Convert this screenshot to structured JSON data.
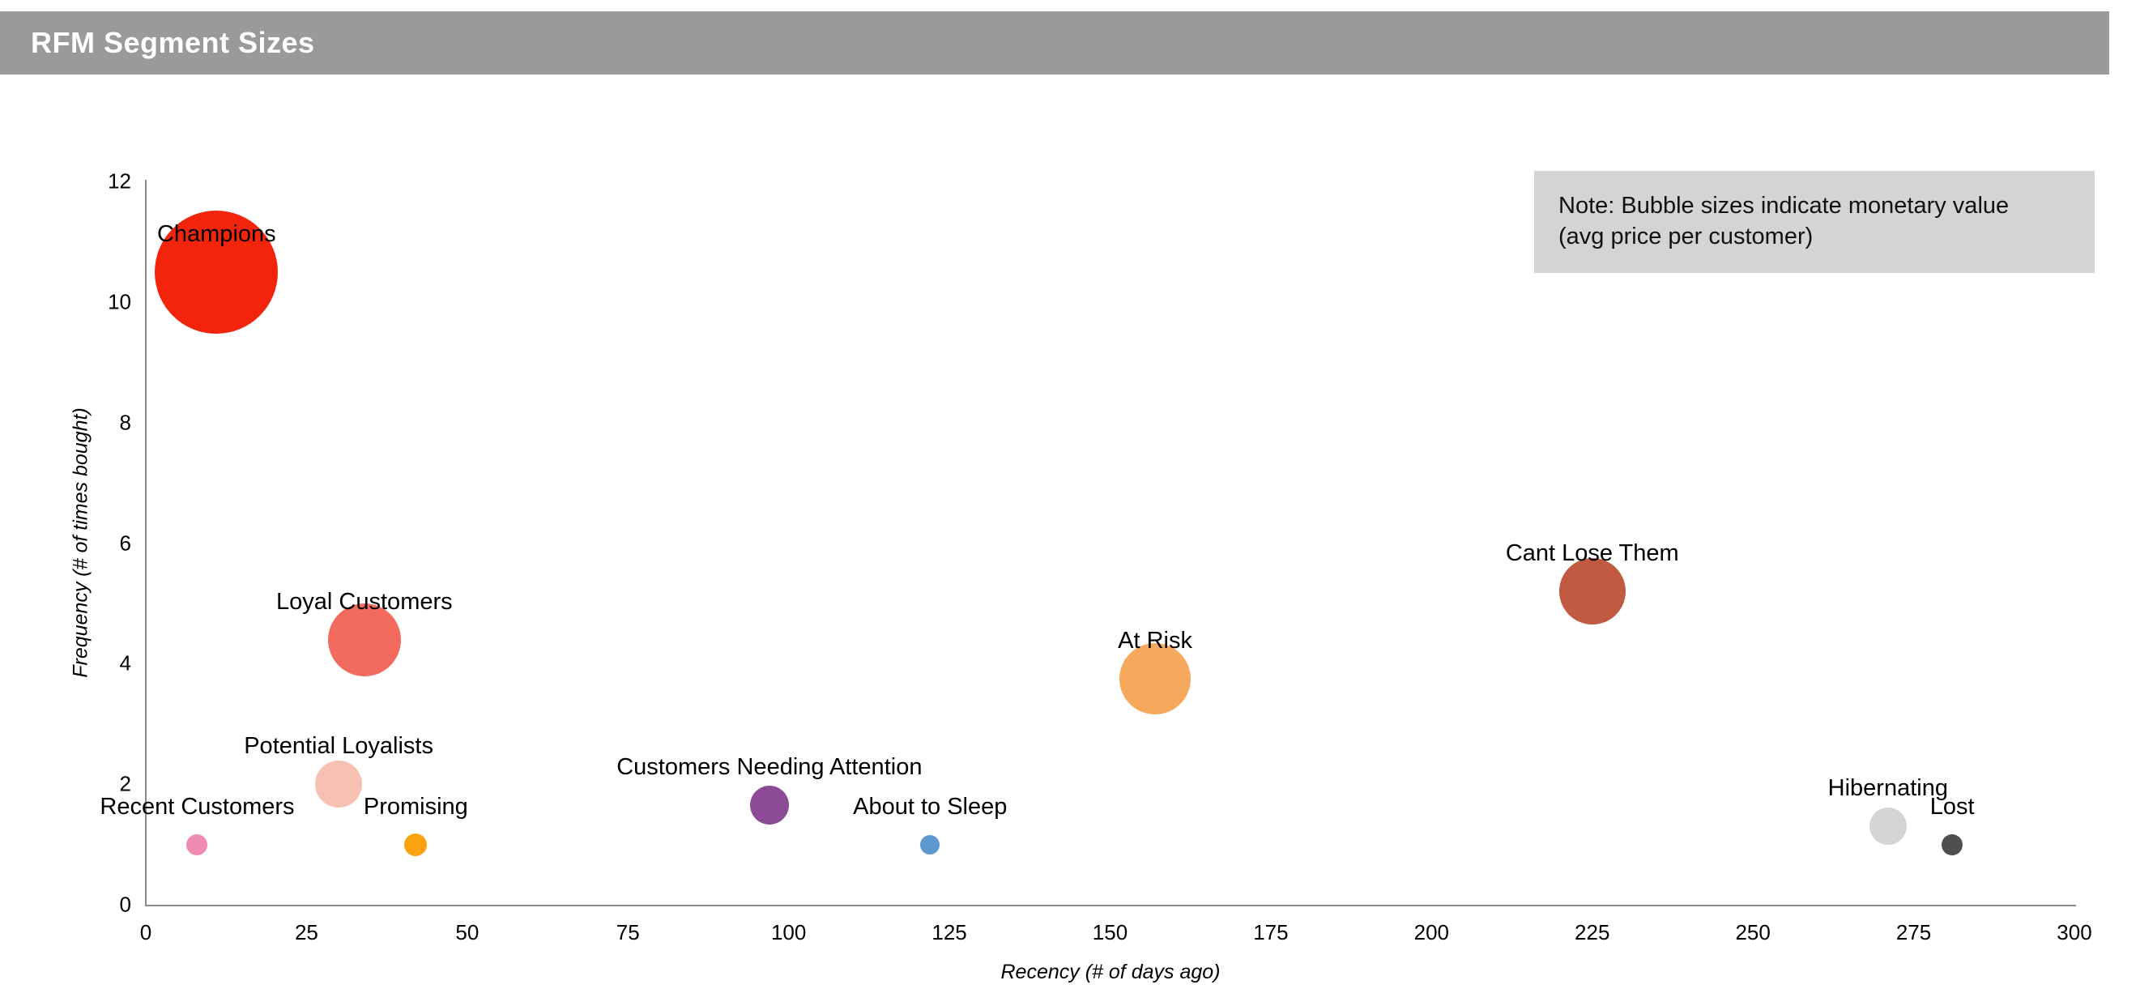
{
  "header": {
    "title": "RFM Segment Sizes"
  },
  "note": {
    "line1": "Note: Bubble sizes indicate monetary value",
    "line2": "(avg price per customer)"
  },
  "chart_data": {
    "type": "scatter",
    "subtype": "bubble",
    "title": "RFM Segment Sizes",
    "xlabel": "Recency (# of days ago)",
    "ylabel": "Frequency (# of times bought)",
    "xlim": [
      0,
      300
    ],
    "ylim": [
      0,
      12
    ],
    "xticks": [
      0,
      25,
      50,
      75,
      100,
      125,
      150,
      175,
      200,
      225,
      250,
      275,
      300
    ],
    "yticks": [
      0,
      2,
      4,
      6,
      8,
      10,
      12
    ],
    "grid": false,
    "legend": "none",
    "size_meaning": "monetary value (avg price per customer)",
    "points": [
      {
        "label": "Champions",
        "x": 11,
        "y": 10.5,
        "radius_px": 76,
        "color": "#f2250c"
      },
      {
        "label": "Loyal Customers",
        "x": 34,
        "y": 4.4,
        "radius_px": 45,
        "color": "#f26b5e"
      },
      {
        "label": "Potential Loyalists",
        "x": 30,
        "y": 2.0,
        "radius_px": 29,
        "color": "#f7c0b2"
      },
      {
        "label": "Recent Customers",
        "x": 8,
        "y": 1.0,
        "radius_px": 13,
        "color": "#f08cb4"
      },
      {
        "label": "Promising",
        "x": 42,
        "y": 1.0,
        "radius_px": 14,
        "color": "#fca312"
      },
      {
        "label": "Customers Needing Attention",
        "x": 97,
        "y": 1.65,
        "radius_px": 24,
        "color": "#8d4a97"
      },
      {
        "label": "About to Sleep",
        "x": 122,
        "y": 1.0,
        "radius_px": 12,
        "color": "#5b99d0"
      },
      {
        "label": "At Risk",
        "x": 157,
        "y": 3.75,
        "radius_px": 44,
        "color": "#f6a85c"
      },
      {
        "label": "Cant Lose Them",
        "x": 225,
        "y": 5.2,
        "radius_px": 41,
        "color": "#c05a41"
      },
      {
        "label": "Hibernating",
        "x": 271,
        "y": 1.3,
        "radius_px": 23,
        "color": "#d4d4d4"
      },
      {
        "label": "Lost",
        "x": 281,
        "y": 1.0,
        "radius_px": 13,
        "color": "#4f4f4f"
      }
    ]
  }
}
